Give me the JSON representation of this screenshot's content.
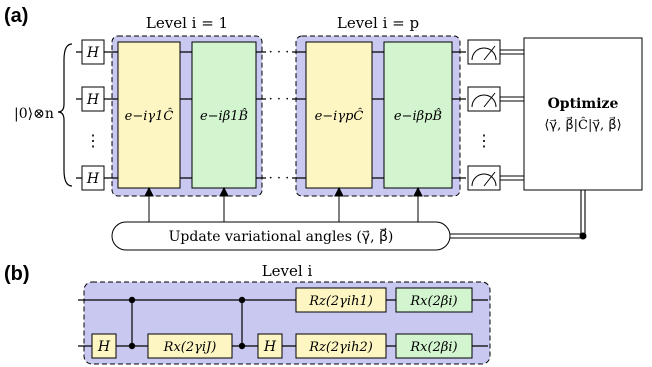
{
  "panel_a": {
    "label": "(a)",
    "level_1_title": "Level i = 1",
    "level_p_title": "Level i = p",
    "state_label": "|0⟩⊗n",
    "h_gate": "H",
    "vdots": "⋮",
    "hdots": "· · ·",
    "gate_c1": "e−iγ1Ĉ",
    "gate_b1": "e−iβ1B̂",
    "gate_cp": "e−iγpĈ",
    "gate_bp": "e−iβpB̂",
    "optimize_title": "Optimize",
    "optimize_expr": "⟨γ⃗, β⃗|Ĉ|γ⃗, β⃗⟩",
    "update_label": "Update variational angles (γ⃗, β⃗)"
  },
  "panel_b": {
    "label": "(b)",
    "level_title": "Level i",
    "h_gate": "H",
    "rx_j": "Rx(2γiJ)",
    "rz_h1": "Rz(2γih1)",
    "rz_h2": "Rz(2γih2)",
    "rx_b_top": "Rx(2βi)",
    "rx_b_bot": "Rx(2βi)"
  },
  "colors": {
    "level_bg": "#c8c8f0",
    "cost_gate": "#fdf6c3",
    "mixer_gate": "#d2f5cf"
  }
}
